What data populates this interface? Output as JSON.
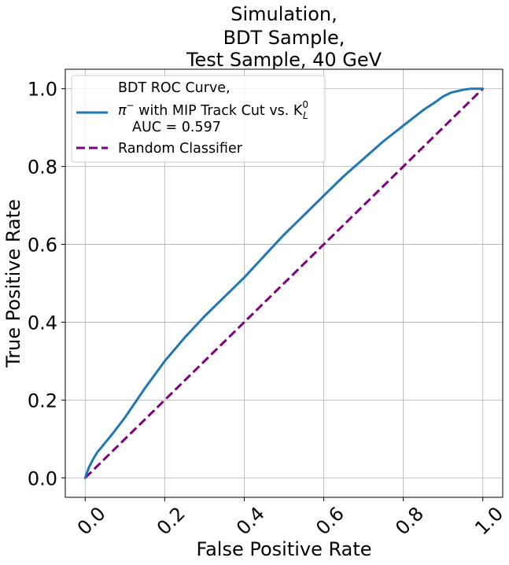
{
  "chart_data": {
    "type": "line",
    "title": [
      "Simulation,",
      "BDT Sample,",
      "Test Sample, 40 GeV"
    ],
    "xlabel": "False Positive Rate",
    "ylabel": "True Positive Rate",
    "xlim": [
      -0.05,
      1.05
    ],
    "ylim": [
      -0.05,
      1.05
    ],
    "xticks": [
      "0.0",
      "0.2",
      "0.4",
      "0.6",
      "0.8",
      "1.0"
    ],
    "yticks": [
      "0.0",
      "0.2",
      "0.4",
      "0.6",
      "0.8",
      "1.0"
    ],
    "grid": true,
    "legend_position": "upper-left",
    "legend": {
      "roc_line1": "BDT ROC Curve,",
      "roc_line2_prefix": "π",
      "roc_line2_sup": "−",
      "roc_line2_mid": " with MIP Track Cut vs. K",
      "roc_line2_kl_sup": "0",
      "roc_line2_kl_sub": "L",
      "roc_line3": "AUC = 0.597",
      "random": "Random Classifier"
    },
    "series": [
      {
        "name": "BDT ROC Curve",
        "color": "#1f77b4",
        "style": "solid",
        "x": [
          0.0,
          0.005,
          0.01,
          0.02,
          0.03,
          0.05,
          0.07,
          0.1,
          0.15,
          0.2,
          0.25,
          0.3,
          0.35,
          0.4,
          0.45,
          0.5,
          0.55,
          0.6,
          0.65,
          0.7,
          0.75,
          0.8,
          0.85,
          0.88,
          0.9,
          0.92,
          0.95,
          0.97,
          0.99,
          1.0
        ],
        "y": [
          0.0,
          0.015,
          0.028,
          0.048,
          0.065,
          0.09,
          0.115,
          0.155,
          0.23,
          0.3,
          0.36,
          0.415,
          0.465,
          0.515,
          0.57,
          0.625,
          0.675,
          0.725,
          0.775,
          0.82,
          0.865,
          0.905,
          0.945,
          0.965,
          0.98,
          0.99,
          0.997,
          1.0,
          1.0,
          1.0
        ]
      },
      {
        "name": "Random Classifier",
        "color": "#800080",
        "style": "dashed",
        "x": [
          0.0,
          1.0
        ],
        "y": [
          0.0,
          1.0
        ]
      }
    ]
  }
}
